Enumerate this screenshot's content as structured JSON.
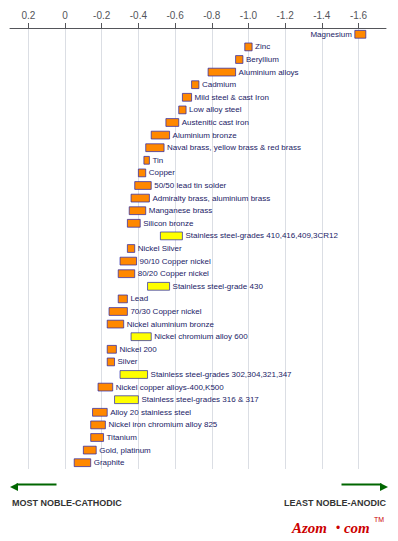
{
  "chart_data": {
    "type": "bar",
    "orientation": "horizontal",
    "categories": [
      "Magnesium",
      "Zinc",
      "Beryllium",
      "Aluminium alloys",
      "Cadmium",
      "Mild steel & cast Iron",
      "Low alloy steel",
      "Austenitic cast iron",
      "Aluminium bronze",
      "Naval brass, yellow brass & red brass",
      "Tin",
      "Copper",
      "50/50 lead tin solder",
      "Admiralty brass, aluminium brass",
      "Manganese brass",
      "Silicon bronze",
      "Stainless steel-grades 410,416,409,3CR12",
      "Nickel Silver",
      "90/10 Copper nickel",
      "80/20 Copper nickel",
      "Stainless steel-grade 430",
      "Lead",
      "70/30 Copper nickel",
      "Nickel aluminium bronze",
      "Nickel chromium alloy 600",
      "Nickel 200",
      "Silver",
      "Stainless steel-grades 302,304,321,347",
      "Nickel copper alloys-400,K500",
      "Stainless steel-grades 316 & 317",
      "Alloy 20 stainless steel",
      "Nickel iron chromium alloy 825",
      "Titanium",
      "Gold, platinum",
      "Graphite"
    ],
    "values": [
      [
        -1.64,
        -1.58
      ],
      [
        -1.02,
        -0.98
      ],
      [
        -0.97,
        -0.93
      ],
      [
        -0.93,
        -0.78
      ],
      [
        -0.73,
        -0.69
      ],
      [
        -0.69,
        -0.64
      ],
      [
        -0.66,
        -0.62
      ],
      [
        -0.62,
        -0.55
      ],
      [
        -0.57,
        -0.47
      ],
      [
        -0.54,
        -0.44
      ],
      [
        -0.46,
        -0.43
      ],
      [
        -0.44,
        -0.4
      ],
      [
        -0.47,
        -0.38
      ],
      [
        -0.46,
        -0.36
      ],
      [
        -0.44,
        -0.35
      ],
      [
        -0.41,
        -0.34
      ],
      [
        -0.64,
        -0.52
      ],
      [
        -0.38,
        -0.34
      ],
      [
        -0.39,
        -0.3
      ],
      [
        -0.38,
        -0.29
      ],
      [
        -0.57,
        -0.45
      ],
      [
        -0.34,
        -0.29
      ],
      [
        -0.34,
        -0.24
      ],
      [
        -0.32,
        -0.23
      ],
      [
        -0.47,
        -0.36
      ],
      [
        -0.28,
        -0.23
      ],
      [
        -0.27,
        -0.23
      ],
      [
        -0.45,
        -0.3
      ],
      [
        -0.26,
        -0.18
      ],
      [
        -0.4,
        -0.27
      ],
      [
        -0.23,
        -0.15
      ],
      [
        -0.22,
        -0.14
      ],
      [
        -0.21,
        -0.14
      ],
      [
        -0.17,
        -0.1
      ],
      [
        -0.14,
        -0.05
      ]
    ],
    "colors": [
      "#ff8800",
      "#ff8800",
      "#ff8800",
      "#ff8800",
      "#ff8800",
      "#ff8800",
      "#ff8800",
      "#ff8800",
      "#ff8800",
      "#ff8800",
      "#ff8800",
      "#ff8800",
      "#ff8800",
      "#ff8800",
      "#ff8800",
      "#ff8800",
      "#ffff00",
      "#ff8800",
      "#ff8800",
      "#ff8800",
      "#ffff00",
      "#ff8800",
      "#ff8800",
      "#ff8800",
      "#ffff00",
      "#ff8800",
      "#ff8800",
      "#ffff00",
      "#ff8800",
      "#ffff00",
      "#ff8800",
      "#ff8800",
      "#ff8800",
      "#ff8800",
      "#ff8800"
    ],
    "xlim": [
      0.3,
      -1.75
    ],
    "xticks": [
      0.2,
      0,
      -0.2,
      -0.4,
      -0.6,
      -0.8,
      {
        "value": -1.0,
        "label": "-1.0"
      },
      -1.2,
      -1.4,
      -1.6
    ],
    "grid": true,
    "tick_labels": "x",
    "annotations": [
      "MOST NOBLE-CATHODIC",
      "LEAST NOBLE-ANODIC",
      "Azom",
      "•",
      "com",
      "TM"
    ]
  }
}
